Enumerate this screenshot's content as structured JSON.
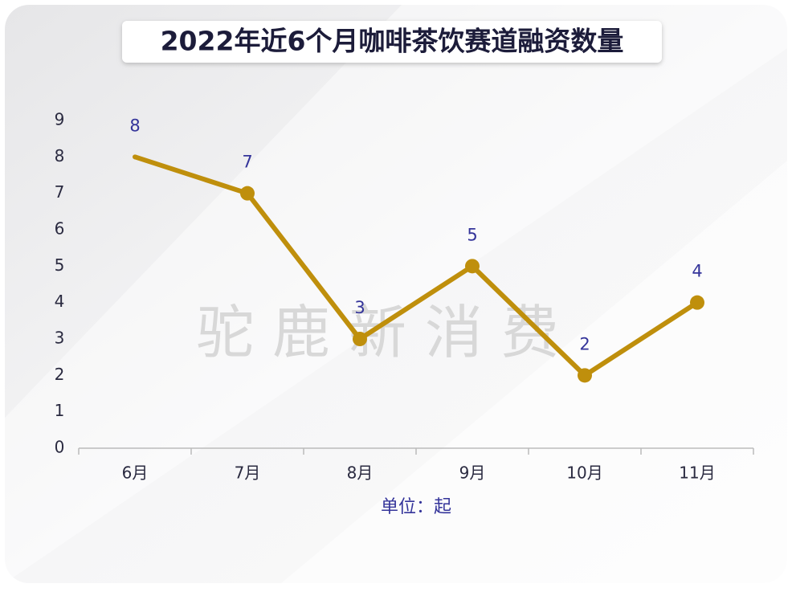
{
  "chart_data": {
    "type": "line",
    "title": "2022年近6个月咖啡茶饮赛道融资数量",
    "categories": [
      "6月",
      "7月",
      "8月",
      "9月",
      "10月",
      "11月"
    ],
    "values": [
      8,
      7,
      3,
      5,
      2,
      4
    ],
    "color": "#bf8f0c",
    "ylim": [
      0,
      9
    ],
    "yticks": [
      0,
      1,
      2,
      3,
      4,
      5,
      6,
      7,
      8,
      9
    ],
    "x_label": "单位：起",
    "watermark": "驼 鹿 新 消 费",
    "grid": false
  }
}
